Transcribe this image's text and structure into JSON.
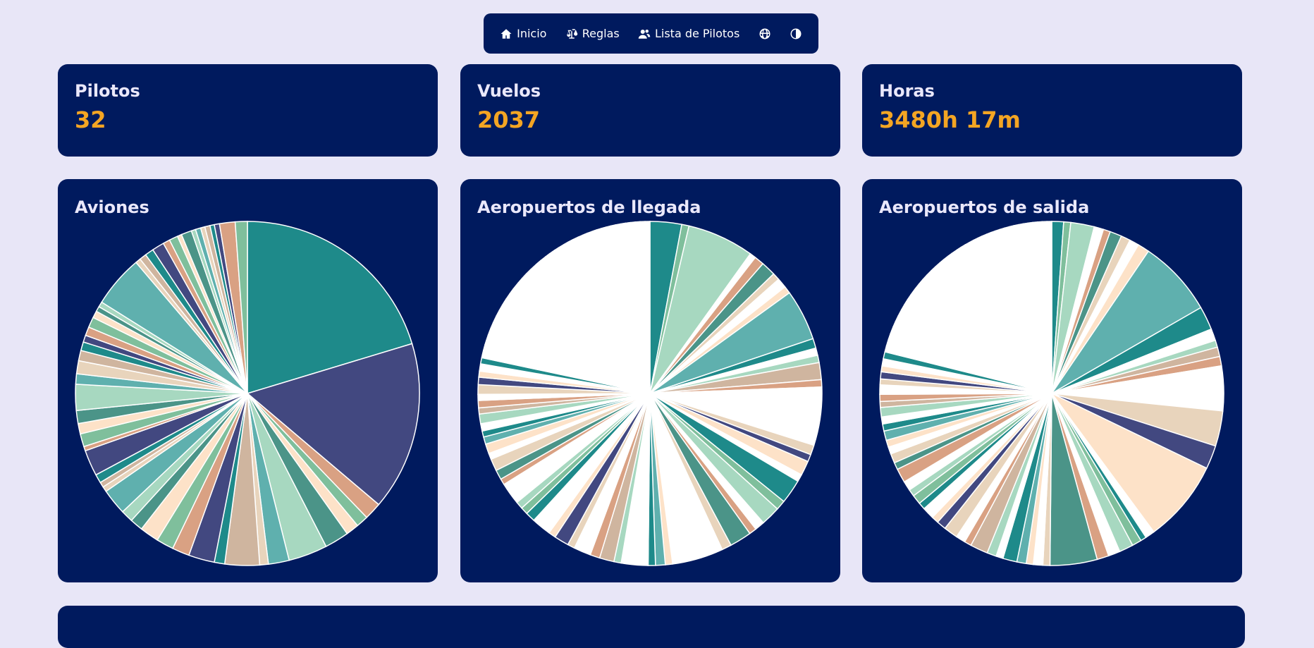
{
  "nav": {
    "inicio": "Inicio",
    "reglas": "Reglas",
    "pilotos": "Lista de Pilotos",
    "globe_icon": "globe-icon",
    "theme_icon": "contrast-icon"
  },
  "stats": [
    {
      "label": "Pilotos",
      "value": "32"
    },
    {
      "label": "Vuelos",
      "value": "2037"
    },
    {
      "label": "Horas",
      "value": "3480h 17m"
    }
  ],
  "palette": [
    "#1e8a8a",
    "#424880",
    "#d9a183",
    "#7fbf9c",
    "#fde2c8",
    "#4b9488",
    "#a7d8c0",
    "#5fb0ae",
    "#e8d4bc",
    "#cfb59f",
    "#ffffff"
  ],
  "chart_data": [
    {
      "type": "pie",
      "title": "Aviones",
      "values": [
        25.0,
        19.5,
        2.0,
        1.4,
        1.5,
        2.8,
        4.5,
        2.4,
        1.0,
        4.0,
        1.2,
        3.0,
        2.0,
        2.0,
        2.2,
        1.5,
        1.4,
        3.0,
        0.6,
        0.6,
        1.0,
        3.0,
        0.5,
        1.5,
        1.2,
        1.5,
        3.0,
        1.2,
        1.5,
        1.2,
        1.0,
        0.8,
        1.0,
        1.2,
        0.8,
        0.6,
        0.6,
        6.0,
        0.6,
        0.8,
        1.0,
        1.4,
        0.8,
        1.0,
        0.5,
        1.2,
        0.5,
        0.6,
        0.5,
        0.6,
        0.5,
        0.6,
        1.8,
        1.4
      ]
    },
    {
      "type": "pie",
      "title": "Aeropuertos de llegada",
      "values": [
        2.6,
        0.6,
        5.5,
        0.5,
        0.8,
        1.2,
        0.6,
        0.8,
        0.6,
        4.2,
        0.8,
        0.6,
        0.6,
        1.4,
        0.6,
        4.8,
        0.8,
        0.6,
        1.2,
        0.6,
        2.0,
        0.8,
        1.6,
        0.8,
        0.6,
        1.8,
        0.8,
        4.2,
        0.6,
        0.8,
        0.6,
        2.2,
        0.6,
        1.2,
        0.8,
        1.4,
        0.6,
        1.2,
        0.6,
        1.6,
        0.8,
        0.6,
        0.6,
        1.8,
        0.5,
        0.8,
        1.0,
        0.5,
        0.8,
        0.6,
        0.5,
        0.6,
        0.8,
        0.5,
        0.6,
        0.5,
        0.8,
        0.6,
        0.5,
        0.6,
        0.5,
        0.6,
        0.5,
        0.8,
        0.6,
        0.5,
        0.6,
        0.5,
        0.5,
        0.6,
        0.5,
        0.5,
        0.6,
        0.5,
        0.5,
        0.5,
        0.6,
        0.5,
        0.5,
        0.4,
        0.5,
        0.4,
        0.5,
        0.4,
        0.4,
        0.5,
        0.4,
        0.4,
        0.4,
        0.4,
        0.4,
        0.4,
        0.4,
        0.4,
        0.4,
        0.4,
        0.4,
        0.4,
        0.4,
        0.4,
        0.4
      ]
    },
    {
      "type": "pie",
      "title": "Aeropuertos de salida",
      "values": [
        1.0,
        0.6,
        2.0,
        0.8,
        0.6,
        1.0,
        0.8,
        0.8,
        1.0,
        6.5,
        2.0,
        1.0,
        0.6,
        0.8,
        0.8,
        3.8,
        3.0,
        2.0,
        7.0,
        0.8,
        0.5,
        0.8,
        1.2,
        1.0,
        1.0,
        4.0,
        0.6,
        0.8,
        0.6,
        0.8,
        1.2,
        0.6,
        0.8,
        1.5,
        0.6,
        0.8,
        1.2,
        0.8,
        0.6,
        1.0,
        0.6,
        0.8,
        0.6,
        0.8,
        1.2,
        0.6,
        0.8,
        0.6,
        0.6,
        0.8,
        0.6,
        0.6,
        0.8,
        0.5,
        0.6,
        0.8,
        0.5,
        0.6,
        0.5,
        0.6,
        0.6,
        0.5,
        0.6,
        0.5,
        0.6,
        0.5,
        0.5,
        0.6,
        0.5,
        0.5,
        0.5,
        0.6,
        0.5,
        0.5,
        0.5,
        0.5,
        0.5,
        0.5,
        0.4,
        0.5,
        0.4,
        0.5,
        0.4,
        0.4,
        0.4,
        0.4,
        0.4,
        0.4,
        0.4,
        0.4,
        0.4,
        0.4,
        0.4,
        0.4,
        0.4,
        0.4,
        0.4,
        0.4,
        0.4,
        0.4,
        0.4,
        0.4,
        0.4
      ]
    }
  ]
}
